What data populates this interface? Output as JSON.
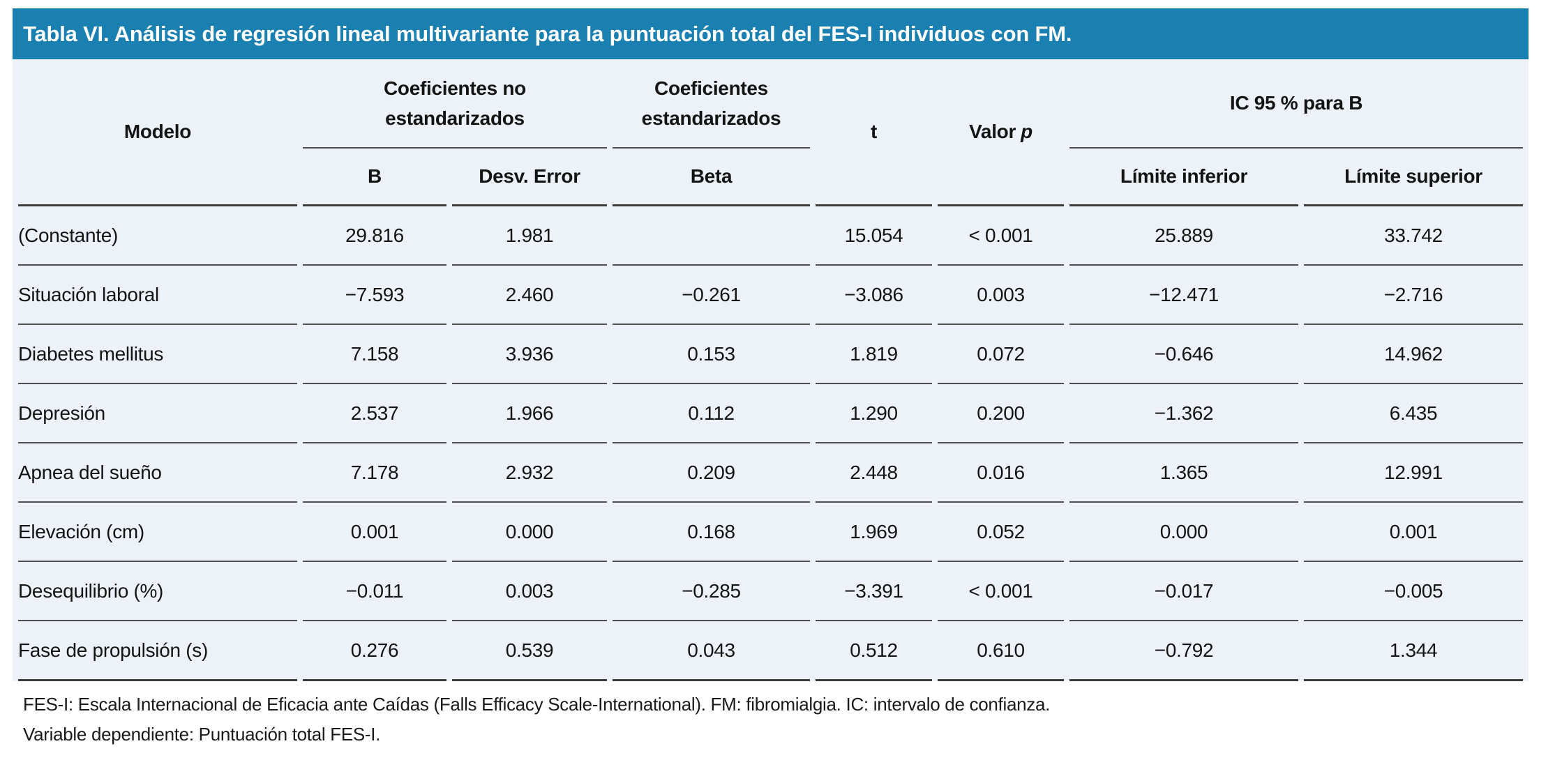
{
  "title": "Tabla VI. Análisis de regresión lineal multivariante para la puntuación total del FES-I individuos con FM.",
  "colors": {
    "title_bar_bg": "#1A80B2",
    "table_bg": "#EDF1F8",
    "rule": "#4d4d4d",
    "title_text": "#ffffff"
  },
  "table": {
    "col_headers": {
      "modelo": "Modelo",
      "group_no_std": "Coeficientes no estandarizados",
      "group_std": "Coeficientes estandarizados",
      "t": "t",
      "valor": "Valor",
      "p": "p",
      "group_ic": "IC 95 % para B",
      "b": "B",
      "desv_error": "Desv. Error",
      "beta": "Beta",
      "limite_inferior": "Límite inferior",
      "limite_superior": "Límite superior"
    },
    "rows": [
      {
        "modelo": "(Constante)",
        "b": "29.816",
        "desv": "1.981",
        "beta": "",
        "t": "15.054",
        "p": "< 0.001",
        "li": "25.889",
        "ls": "33.742"
      },
      {
        "modelo": "Situación laboral",
        "b": "−7.593",
        "desv": "2.460",
        "beta": "−0.261",
        "t": "−3.086",
        "p": "0.003",
        "li": "−12.471",
        "ls": "−2.716"
      },
      {
        "modelo": "Diabetes mellitus",
        "b": "7.158",
        "desv": "3.936",
        "beta": "0.153",
        "t": "1.819",
        "p": "0.072",
        "li": "−0.646",
        "ls": "14.962"
      },
      {
        "modelo": "Depresión",
        "b": "2.537",
        "desv": "1.966",
        "beta": "0.112",
        "t": "1.290",
        "p": "0.200",
        "li": "−1.362",
        "ls": "6.435"
      },
      {
        "modelo": "Apnea del sueño",
        "b": "7.178",
        "desv": "2.932",
        "beta": "0.209",
        "t": "2.448",
        "p": "0.016",
        "li": "1.365",
        "ls": "12.991"
      },
      {
        "modelo": "Elevación (cm)",
        "b": "0.001",
        "desv": "0.000",
        "beta": "0.168",
        "t": "1.969",
        "p": "0.052",
        "li": "0.000",
        "ls": "0.001"
      },
      {
        "modelo": "Desequilibrio (%)",
        "b": "−0.011",
        "desv": "0.003",
        "beta": "−0.285",
        "t": "−3.391",
        "p": "< 0.001",
        "li": "−0.017",
        "ls": "−0.005"
      },
      {
        "modelo": "Fase de propulsión (s)",
        "b": "0.276",
        "desv": "0.539",
        "beta": "0.043",
        "t": "0.512",
        "p": "0.610",
        "li": "−0.792",
        "ls": "1.344"
      }
    ]
  },
  "footnotes": [
    "FES-I: Escala Internacional de Eficacia ante Caídas (Falls Efficacy Scale-International). FM: fibromialgia. IC: intervalo de confianza.",
    "Variable dependiente: Puntuación total FES-I."
  ]
}
